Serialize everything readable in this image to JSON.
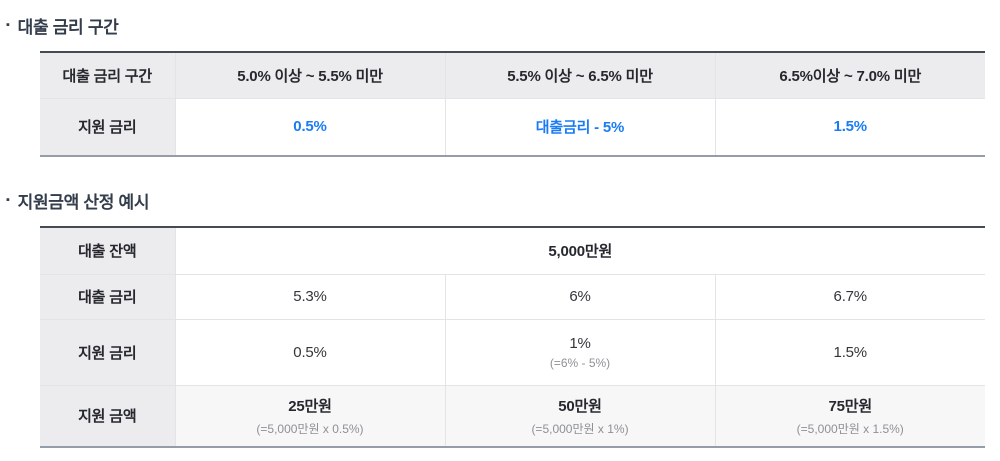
{
  "colors": {
    "accent_blue": "#1a7cf5",
    "header_cell_bg": "#ececee",
    "highlight_row_bg": "#f7f7f8",
    "table_top_border": "#454b54",
    "table_bottom_border": "#959da9",
    "divider": "#e3e4e6",
    "title_text": "#333d4b",
    "muted_text": "#8e9095"
  },
  "bullet": "▪",
  "section_rate": {
    "title": "대출 금리 구간",
    "table": {
      "corner_header": "대출 금리 구간",
      "ranges": [
        "5.0% 이상 ~ 5.5% 미만",
        "5.5% 이상 ~ 6.5% 미만",
        "6.5%이상 ~ 7.0% 미만"
      ],
      "support_label": "지원 금리",
      "support_values": [
        "0.5%",
        "대출금리 - 5%",
        "1.5%"
      ]
    }
  },
  "section_example": {
    "title": "지원금액 산정 예시",
    "table": {
      "balance_label": "대출 잔액",
      "balance_value": "5,000만원",
      "loan_rate_label": "대출 금리",
      "loan_rates": [
        "5.3%",
        "6%",
        "6.7%"
      ],
      "support_rate_label": "지원 금리",
      "support_rates": [
        "0.5%",
        "1%",
        "1.5%"
      ],
      "support_rate_note": "(=6% - 5%)",
      "amount_label": "지원 금액",
      "amounts": [
        "25만원",
        "50만원",
        "75만원"
      ],
      "amount_notes": [
        "(=5,000만원 x 0.5%)",
        "(=5,000만원 x 1%)",
        "(=5,000만원 x 1.5%)"
      ]
    }
  }
}
